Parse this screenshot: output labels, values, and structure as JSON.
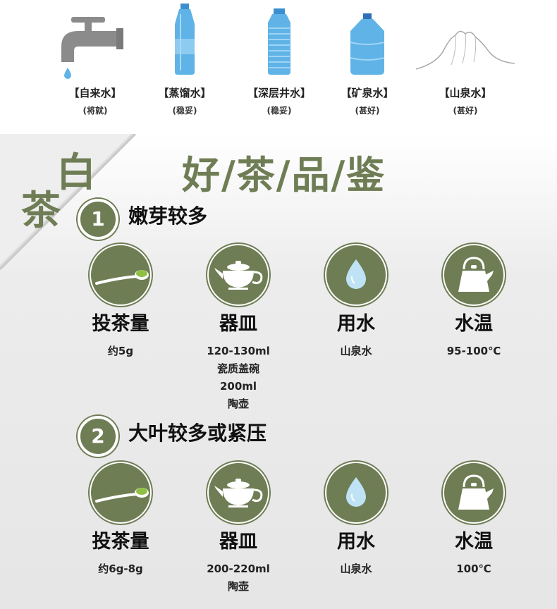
{
  "water_types": [
    {
      "name": "【自来水】",
      "rating": "(将就)",
      "icon": "faucet-icon"
    },
    {
      "name": "【蒸馏水】",
      "rating": "(稳妥)",
      "icon": "water-bottle-icon"
    },
    {
      "name": "【深层井水】",
      "rating": "(稳妥)",
      "icon": "ridged-bottle-icon"
    },
    {
      "name": "【矿泉水】",
      "rating": "(甚好)",
      "icon": "water-jug-icon"
    },
    {
      "name": "【山泉水】",
      "rating": "(甚好)",
      "icon": "mountain-icon"
    }
  ],
  "tea_type": [
    "白",
    "茶"
  ],
  "title": "好/茶/品/鉴",
  "steps": [
    {
      "number": "1",
      "title": "嫩芽较多",
      "items": [
        {
          "label": "投茶量",
          "values": [
            "约5g"
          ],
          "icon": "tea-spoon-icon"
        },
        {
          "label": "器皿",
          "values": [
            "120-130ml",
            "瓷质盖碗",
            "200ml",
            "陶壶"
          ],
          "icon": "teapot-icon"
        },
        {
          "label": "用水",
          "values": [
            "山泉水"
          ],
          "icon": "water-drop-icon"
        },
        {
          "label": "水温",
          "values": [
            "95-100℃"
          ],
          "icon": "kettle-icon"
        }
      ]
    },
    {
      "number": "2",
      "title": "大叶较多或紧压",
      "items": [
        {
          "label": "投茶量",
          "values": [
            "约6g-8g"
          ],
          "icon": "tea-spoon-icon"
        },
        {
          "label": "器皿",
          "values": [
            "200-220ml",
            "陶壶"
          ],
          "icon": "teapot-icon"
        },
        {
          "label": "用水",
          "values": [
            "山泉水"
          ],
          "icon": "water-drop-icon"
        },
        {
          "label": "水温",
          "values": [
            "100℃"
          ],
          "icon": "kettle-icon"
        }
      ]
    }
  ],
  "colors": {
    "accent": "#6f7d55",
    "water_blue": "#5fb3e6",
    "leaf_green": "#8fc043"
  }
}
